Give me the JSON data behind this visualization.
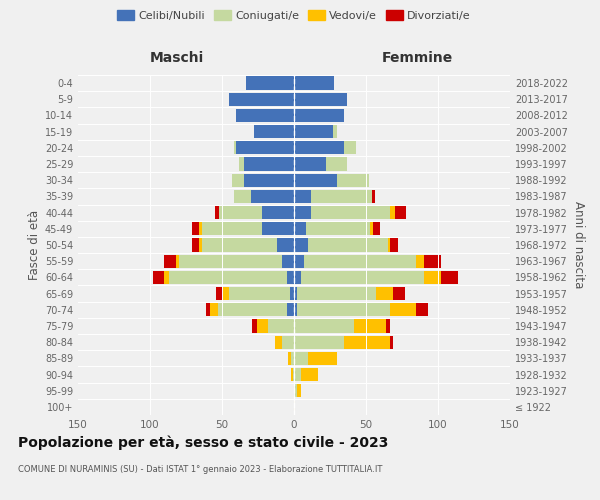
{
  "age_groups": [
    "100+",
    "95-99",
    "90-94",
    "85-89",
    "80-84",
    "75-79",
    "70-74",
    "65-69",
    "60-64",
    "55-59",
    "50-54",
    "45-49",
    "40-44",
    "35-39",
    "30-34",
    "25-29",
    "20-24",
    "15-19",
    "10-14",
    "5-9",
    "0-4"
  ],
  "birth_years": [
    "≤ 1922",
    "1923-1927",
    "1928-1932",
    "1933-1937",
    "1938-1942",
    "1943-1947",
    "1948-1952",
    "1953-1957",
    "1958-1962",
    "1963-1967",
    "1968-1972",
    "1973-1977",
    "1978-1982",
    "1983-1987",
    "1988-1992",
    "1993-1997",
    "1998-2002",
    "2003-2007",
    "2008-2012",
    "2013-2017",
    "2018-2022"
  ],
  "maschi": {
    "celibi": [
      0,
      0,
      0,
      0,
      0,
      0,
      5,
      3,
      5,
      8,
      12,
      22,
      22,
      30,
      35,
      35,
      40,
      28,
      40,
      45,
      33
    ],
    "coniugati": [
      0,
      0,
      1,
      2,
      8,
      18,
      48,
      42,
      82,
      72,
      52,
      42,
      30,
      12,
      8,
      3,
      2,
      0,
      0,
      0,
      0
    ],
    "vedovi": [
      0,
      0,
      1,
      2,
      5,
      8,
      5,
      4,
      3,
      2,
      2,
      2,
      0,
      0,
      0,
      0,
      0,
      0,
      0,
      0,
      0
    ],
    "divorziati": [
      0,
      0,
      0,
      0,
      0,
      3,
      3,
      5,
      8,
      8,
      5,
      5,
      3,
      0,
      0,
      0,
      0,
      0,
      0,
      0,
      0
    ]
  },
  "femmine": {
    "nubili": [
      0,
      0,
      0,
      0,
      0,
      0,
      2,
      2,
      5,
      7,
      10,
      8,
      12,
      12,
      30,
      22,
      35,
      27,
      35,
      37,
      28
    ],
    "coniugate": [
      0,
      2,
      5,
      10,
      35,
      42,
      65,
      55,
      85,
      78,
      55,
      45,
      55,
      42,
      22,
      15,
      8,
      3,
      0,
      0,
      0
    ],
    "vedove": [
      1,
      3,
      12,
      20,
      32,
      22,
      18,
      12,
      12,
      5,
      2,
      2,
      3,
      0,
      0,
      0,
      0,
      0,
      0,
      0,
      0
    ],
    "divorziate": [
      0,
      0,
      0,
      0,
      2,
      3,
      8,
      8,
      12,
      12,
      5,
      5,
      8,
      2,
      0,
      0,
      0,
      0,
      0,
      0,
      0
    ]
  },
  "colors": {
    "celibi": "#4472b8",
    "coniugati": "#c5d9a0",
    "vedovi": "#ffc000",
    "divorziati": "#cc0000"
  },
  "xlim": 150,
  "title": "Popolazione per età, sesso e stato civile - 2023",
  "subtitle": "COMUNE DI NURAMINIS (SU) - Dati ISTAT 1° gennaio 2023 - Elaborazione TUTTITALIA.IT",
  "ylabel_left": "Fasce di età",
  "ylabel_right": "Anni di nascita",
  "xlabel_left": "Maschi",
  "xlabel_right": "Femmine",
  "bg_color": "#f0f0f0"
}
